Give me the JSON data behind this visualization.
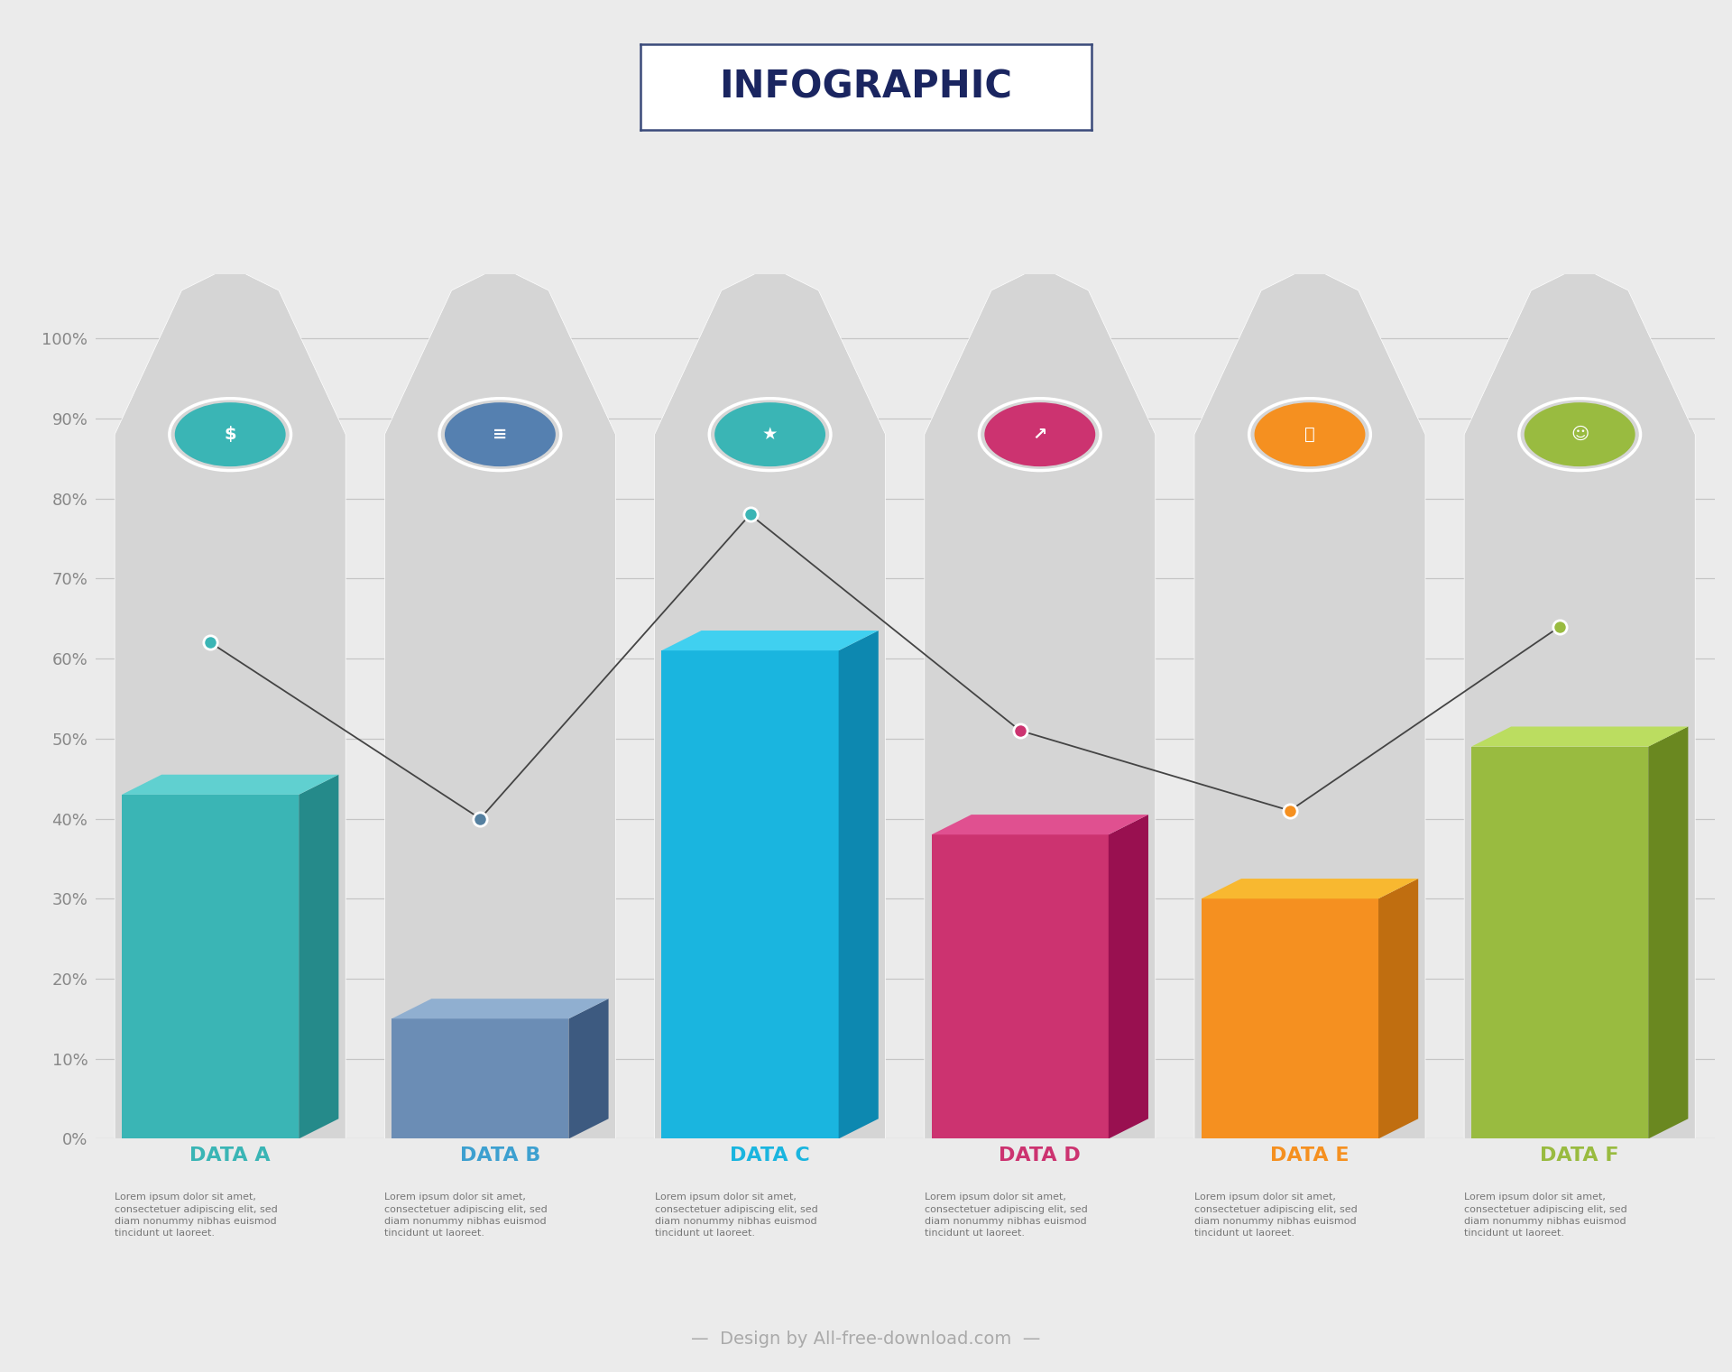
{
  "title": "INFOGRAPHIC",
  "background_color": "#ebebeb",
  "bar_data": {
    "labels": [
      "DATA A",
      "DATA B",
      "DATA C",
      "DATA D",
      "DATA E",
      "DATA F"
    ],
    "heights": [
      43,
      15,
      61,
      38,
      30,
      49
    ],
    "face_colors": [
      "#3ab5b5",
      "#6b8db5",
      "#1ab5df",
      "#cc3370",
      "#f59020",
      "#99bb40"
    ],
    "side_colors": [
      "#258a8a",
      "#3d5a80",
      "#0d88b0",
      "#991050",
      "#c06e10",
      "#6a8820"
    ],
    "top_colors": [
      "#60d0d0",
      "#90afd0",
      "#40d0f0",
      "#e05090",
      "#f8b830",
      "#bbdd60"
    ]
  },
  "line_data": {
    "values": [
      62,
      40,
      78,
      51,
      41,
      64
    ],
    "color": "#444444",
    "dot_colors": [
      "#3ab5b5",
      "#5580a0",
      "#3ab5b5",
      "#cc3370",
      "#f59020",
      "#99bb40"
    ]
  },
  "tombstone_color": "#d5d5d5",
  "y_ticks": [
    0,
    10,
    20,
    30,
    40,
    50,
    60,
    70,
    80,
    90,
    100
  ],
  "y_tick_labels": [
    "0%",
    "10%",
    "20%",
    "30%",
    "40%",
    "50%",
    "60%",
    "70%",
    "80%",
    "90%",
    "100%"
  ],
  "grid_color": "#c5c5c5",
  "descriptions": [
    "Lorem ipsum dolor sit amet,\nconsectetuer adipiscing elit, sed\ndiam nonummy nibhas euismod\ntincidunt ut laoreet.",
    "Lorem ipsum dolor sit amet,\nconsectetuer adipiscing elit, sed\ndiam nonummy nibhas euismod\ntincidunt ut laoreet.",
    "Lorem ipsum dolor sit amet,\nconsectetuer adipiscing elit, sed\ndiam nonummy nibhas euismod\ntincidunt ut laoreet.",
    "Lorem ipsum dolor sit amet,\nconsectetuer adipiscing elit, sed\ndiam nonummy nibhas euismod\ntincidunt ut laoreet.",
    "Lorem ipsum dolor sit amet,\nconsectetuer adipiscing elit, sed\ndiam nonummy nibhas euismod\ntincidunt ut laoreet.",
    "Lorem ipsum dolor sit amet,\nconsectetuer adipiscing elit, sed\ndiam nonummy nibhas euismod\ntincidunt ut laoreet."
  ],
  "label_colors": [
    "#3ab5b5",
    "#3da0d0",
    "#1ab5df",
    "#cc3370",
    "#f59020",
    "#99bb40"
  ],
  "icon_bg_colors": [
    "#3ab5b5",
    "#5580b0",
    "#3ab5b5",
    "#cc3370",
    "#f59020",
    "#99bb40"
  ],
  "icon_symbols": [
    "$",
    "≡",
    "★",
    "↗",
    "⏰",
    "☺"
  ],
  "footer_bg": "#252525",
  "footer_text": "—  Design by All-free-download.com  —"
}
